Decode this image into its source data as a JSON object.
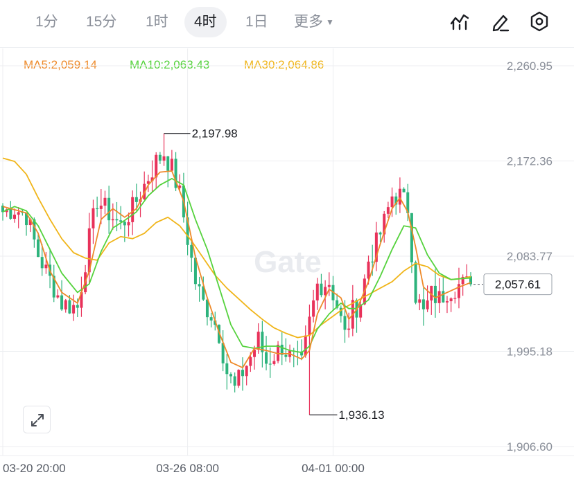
{
  "tabs": [
    {
      "label": "1分",
      "active": false
    },
    {
      "label": "15分",
      "active": false
    },
    {
      "label": "1时",
      "active": false
    },
    {
      "label": "4时",
      "active": true
    },
    {
      "label": "1日",
      "active": false
    }
  ],
  "more_label": "更多",
  "toolbar_icons": [
    "indicator-icon",
    "draw-icon",
    "settings-icon"
  ],
  "ma_labels": {
    "ma5": "MA5:2,059.14",
    "ma10": "MA10:2,063.43",
    "ma30": "MA30:2,064.86"
  },
  "colors": {
    "up": "#e8325a",
    "down": "#2db37c",
    "ma5": "#ee8a2a",
    "ma10": "#55d23d",
    "ma30": "#f0b51a",
    "grid": "#eceef1"
  },
  "watermark": "Gate",
  "chart_data": {
    "type": "candlestick",
    "interval": "4时",
    "y_ticks": [
      "2,260.95",
      "2,172.36",
      "2,083.77",
      "1,995.18",
      "1,906.60"
    ],
    "y_tick_values": [
      2260.95,
      2172.36,
      2083.77,
      1995.18,
      1906.6
    ],
    "ylim": [
      1906.6,
      2260.95
    ],
    "x_ticks": [
      "03-20 20:00",
      "03-26 08:00",
      "04-01 00:00"
    ],
    "high_marker": "2,197.98",
    "high_value": 2197.98,
    "low_marker": "1,936.13",
    "low_value": 1936.13,
    "last_price": "2,057.61",
    "last_value": 2057.61,
    "candle_count": 120,
    "high_index": 41,
    "low_index": 78,
    "x_tick_indices": [
      0,
      47,
      84
    ],
    "anchors": [
      [
        0,
        2125
      ],
      [
        3,
        2128
      ],
      [
        6,
        2122
      ],
      [
        9,
        2085
      ],
      [
        12,
        2062
      ],
      [
        15,
        2040
      ],
      [
        19,
        2036
      ],
      [
        22,
        2100
      ],
      [
        24,
        2136
      ],
      [
        27,
        2124
      ],
      [
        30,
        2112
      ],
      [
        33,
        2128
      ],
      [
        36,
        2150
      ],
      [
        39,
        2172
      ],
      [
        41,
        2180
      ],
      [
        43,
        2165
      ],
      [
        45,
        2141
      ],
      [
        47,
        2100
      ],
      [
        49,
        2060
      ],
      [
        51,
        2040
      ],
      [
        53,
        2030
      ],
      [
        55,
        2012
      ],
      [
        57,
        1976
      ],
      [
        59,
        1960
      ],
      [
        61,
        1976
      ],
      [
        63,
        1990
      ],
      [
        65,
        2006
      ],
      [
        67,
        1985
      ],
      [
        69,
        1992
      ],
      [
        71,
        2000
      ],
      [
        73,
        1990
      ],
      [
        76,
        1982
      ],
      [
        78,
        2022
      ],
      [
        80,
        2057
      ],
      [
        83,
        2060
      ],
      [
        85,
        2038
      ],
      [
        87,
        2010
      ],
      [
        89,
        2033
      ],
      [
        91,
        2042
      ],
      [
        93,
        2080
      ],
      [
        95,
        2095
      ],
      [
        97,
        2115
      ],
      [
        99,
        2140
      ],
      [
        101,
        2140
      ],
      [
        103,
        2129
      ],
      [
        105,
        2048
      ],
      [
        107,
        2030
      ],
      [
        109,
        2048
      ],
      [
        111,
        2044
      ],
      [
        113,
        2052
      ],
      [
        116,
        2057
      ],
      [
        119,
        2057.61
      ]
    ],
    "ma5_points": [
      [
        0,
        2130
      ],
      [
        3,
        2127
      ],
      [
        6,
        2124
      ],
      [
        9,
        2105
      ],
      [
        12,
        2070
      ],
      [
        15,
        2050
      ],
      [
        19,
        2040
      ],
      [
        22,
        2070
      ],
      [
        25,
        2118
      ],
      [
        28,
        2128
      ],
      [
        31,
        2120
      ],
      [
        34,
        2128
      ],
      [
        37,
        2150
      ],
      [
        40,
        2162
      ],
      [
        43,
        2163
      ],
      [
        46,
        2135
      ],
      [
        49,
        2083
      ],
      [
        52,
        2045
      ],
      [
        55,
        2013
      ],
      [
        58,
        1985
      ],
      [
        61,
        1980
      ],
      [
        64,
        1998
      ],
      [
        67,
        1996
      ],
      [
        70,
        1993
      ],
      [
        73,
        1993
      ],
      [
        76,
        1988
      ],
      [
        78,
        1996
      ],
      [
        80,
        2030
      ],
      [
        83,
        2053
      ],
      [
        86,
        2045
      ],
      [
        88,
        2025
      ],
      [
        90,
        2034
      ],
      [
        93,
        2060
      ],
      [
        96,
        2095
      ],
      [
        99,
        2128
      ],
      [
        101,
        2138
      ],
      [
        103,
        2125
      ],
      [
        105,
        2092
      ],
      [
        107,
        2055
      ],
      [
        110,
        2045
      ],
      [
        113,
        2050
      ],
      [
        116,
        2055
      ],
      [
        119,
        2059.14
      ]
    ],
    "ma10_points": [
      [
        0,
        2125
      ],
      [
        3,
        2130
      ],
      [
        6,
        2126
      ],
      [
        9,
        2112
      ],
      [
        12,
        2090
      ],
      [
        15,
        2068
      ],
      [
        19,
        2050
      ],
      [
        22,
        2058
      ],
      [
        25,
        2088
      ],
      [
        28,
        2110
      ],
      [
        31,
        2117
      ],
      [
        34,
        2125
      ],
      [
        37,
        2140
      ],
      [
        40,
        2150
      ],
      [
        43,
        2156
      ],
      [
        46,
        2150
      ],
      [
        49,
        2118
      ],
      [
        52,
        2090
      ],
      [
        55,
        2055
      ],
      [
        58,
        2020
      ],
      [
        61,
        2000
      ],
      [
        64,
        1998
      ],
      [
        67,
        2000
      ],
      [
        70,
        2000
      ],
      [
        73,
        1996
      ],
      [
        76,
        1994
      ],
      [
        78,
        2000
      ],
      [
        80,
        2016
      ],
      [
        83,
        2030
      ],
      [
        86,
        2040
      ],
      [
        88,
        2035
      ],
      [
        90,
        2035
      ],
      [
        93,
        2043
      ],
      [
        96,
        2065
      ],
      [
        99,
        2090
      ],
      [
        102,
        2112
      ],
      [
        105,
        2110
      ],
      [
        108,
        2085
      ],
      [
        111,
        2068
      ],
      [
        114,
        2062
      ],
      [
        117,
        2063
      ],
      [
        119,
        2063.43
      ]
    ],
    "ma30_points": [
      [
        0,
        2175
      ],
      [
        3,
        2172
      ],
      [
        6,
        2160
      ],
      [
        9,
        2138
      ],
      [
        12,
        2118
      ],
      [
        15,
        2100
      ],
      [
        18,
        2087
      ],
      [
        21,
        2082
      ],
      [
        24,
        2080
      ],
      [
        27,
        2096
      ],
      [
        30,
        2102
      ],
      [
        33,
        2100
      ],
      [
        36,
        2105
      ],
      [
        39,
        2115
      ],
      [
        42,
        2120
      ],
      [
        45,
        2112
      ],
      [
        48,
        2098
      ],
      [
        51,
        2082
      ],
      [
        54,
        2066
      ],
      [
        57,
        2054
      ],
      [
        60,
        2044
      ],
      [
        63,
        2034
      ],
      [
        66,
        2025
      ],
      [
        69,
        2017
      ],
      [
        72,
        2012
      ],
      [
        75,
        2008
      ],
      [
        78,
        2010
      ],
      [
        81,
        2020
      ],
      [
        84,
        2028
      ],
      [
        87,
        2036
      ],
      [
        90,
        2042
      ],
      [
        93,
        2048
      ],
      [
        96,
        2054
      ],
      [
        99,
        2060
      ],
      [
        102,
        2070
      ],
      [
        105,
        2077
      ],
      [
        108,
        2074
      ],
      [
        111,
        2066
      ],
      [
        114,
        2062
      ],
      [
        117,
        2063
      ],
      [
        119,
        2064.86
      ]
    ]
  }
}
